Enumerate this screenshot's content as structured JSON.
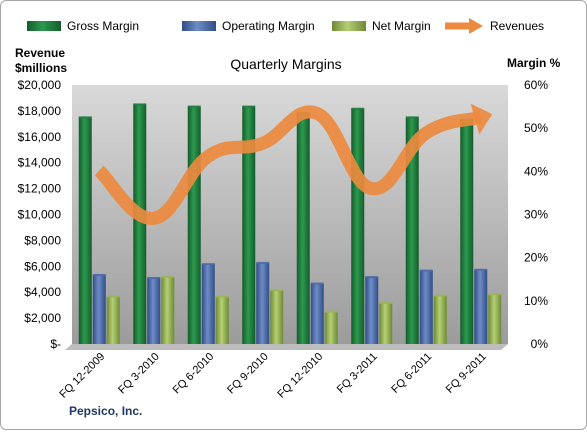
{
  "chart_data": {
    "type": "bar",
    "title": "Quarterly Margins",
    "company": "Pepsico, Inc.",
    "left_axis_label_line1": "Revenue",
    "left_axis_label_line2": "$millions",
    "right_axis_label": "Margin %",
    "categories": [
      "FQ 12-2009",
      "FQ 3-2010",
      "FQ 6-2010",
      "FQ 9-2010",
      "FQ 12-2010",
      "FQ 3-2011",
      "FQ 6-2011",
      "FQ 9-2011"
    ],
    "y_left": {
      "min": 0,
      "max": 20000,
      "step": 2000,
      "ticks": [
        "$-",
        "$2,000",
        "$4,000",
        "$6,000",
        "$8,000",
        "$10,000",
        "$12,000",
        "$14,000",
        "$16,000",
        "$18,000",
        "$20,000"
      ]
    },
    "y_right": {
      "min": 0,
      "max": 60,
      "step": 10,
      "ticks": [
        "0%",
        "10%",
        "20%",
        "30%",
        "40%",
        "50%",
        "60%"
      ]
    },
    "series": [
      {
        "name": "Gross Margin",
        "axis": "right",
        "kind": "bar",
        "color": "#1e7a3c",
        "values": [
          52.5,
          55.5,
          55.0,
          55.0,
          53.5,
          54.5,
          52.5,
          52.0
        ]
      },
      {
        "name": "Operating Margin",
        "axis": "right",
        "kind": "bar",
        "color": "#4a6aa8",
        "values": [
          16.0,
          15.3,
          18.5,
          18.8,
          14.0,
          15.5,
          17.0,
          17.2
        ]
      },
      {
        "name": "Net Margin",
        "axis": "right",
        "kind": "bar",
        "color": "#98b554",
        "values": [
          11.0,
          15.5,
          11.0,
          12.5,
          7.5,
          9.5,
          11.2,
          11.5
        ]
      },
      {
        "name": "Revenues",
        "axis": "left",
        "kind": "line",
        "color": "#ec8a3e",
        "values": [
          13400,
          9700,
          14500,
          15500,
          17800,
          12000,
          16300,
          17500
        ]
      }
    ],
    "legend_position": "top",
    "grid": false
  }
}
